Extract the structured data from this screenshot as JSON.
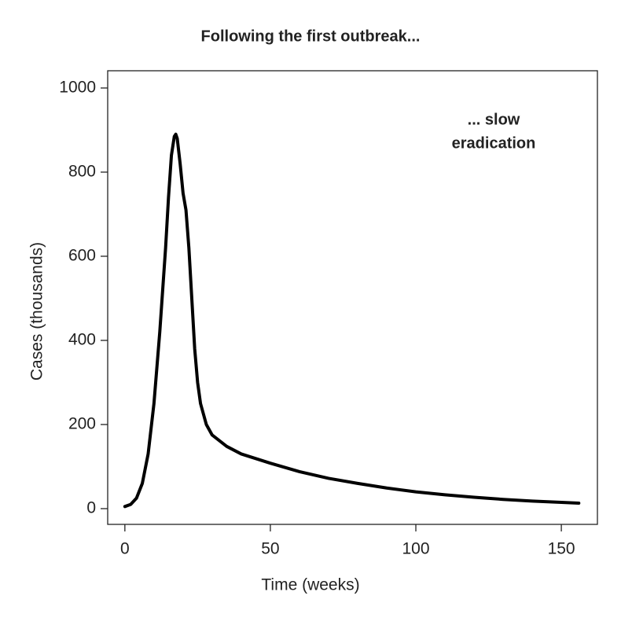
{
  "chart_data": {
    "type": "line",
    "title": "Following the first outbreak...",
    "x_label": "Time (weeks)",
    "y_label": "Cases (thousands)",
    "annotation": [
      "... slow",
      "eradication"
    ],
    "x": [
      0,
      2,
      4,
      6,
      8,
      10,
      12,
      14,
      15,
      16,
      17,
      17.5,
      18,
      19,
      20,
      21,
      22,
      23,
      24,
      25,
      26,
      28,
      30,
      35,
      40,
      50,
      60,
      70,
      80,
      90,
      100,
      110,
      120,
      130,
      140,
      150,
      156
    ],
    "series": [
      {
        "color": "#000000",
        "values": [
          5,
          10,
          25,
          60,
          130,
          250,
          420,
          620,
          740,
          840,
          885,
          890,
          880,
          820,
          750,
          710,
          620,
          500,
          380,
          300,
          250,
          200,
          175,
          148,
          130,
          108,
          88,
          72,
          60,
          49,
          40,
          33,
          27,
          22,
          18,
          15,
          13
        ]
      }
    ],
    "xlim": [
      -5.9,
      162.4
    ],
    "ylim": [
      -37.4,
      1041
    ],
    "xticks": [
      0,
      50,
      100,
      150
    ],
    "yticks": [
      0,
      200,
      400,
      600,
      800,
      1000
    ],
    "grid": false
  }
}
